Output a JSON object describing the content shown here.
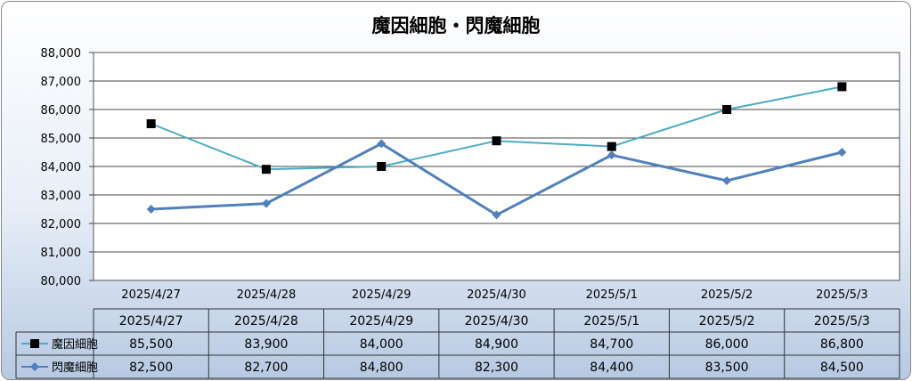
{
  "chart_data": {
    "type": "line",
    "title": "魔因細胞・閃魔細胞",
    "categories": [
      "2025/4/27",
      "2025/4/28",
      "2025/4/29",
      "2025/4/30",
      "2025/5/1",
      "2025/5/2",
      "2025/5/3"
    ],
    "series": [
      {
        "name": "魔因細胞",
        "values": [
          85500,
          83900,
          84000,
          84900,
          84700,
          86000,
          86800
        ],
        "color": "#4bacc6",
        "marker": "square",
        "marker_color": "#000000"
      },
      {
        "name": "閃魔細胞",
        "values": [
          82500,
          82700,
          84800,
          82300,
          84400,
          83500,
          84500
        ],
        "color": "#4f81bd",
        "marker": "diamond",
        "marker_color": "#4f81bd"
      }
    ],
    "ylim": [
      80000,
      88000
    ],
    "y_ticks": [
      "80,000",
      "81,000",
      "82,000",
      "83,000",
      "84,000",
      "85,000",
      "86,000",
      "87,000",
      "88,000"
    ],
    "table": [
      [
        "85,500",
        "83,900",
        "84,000",
        "84,900",
        "84,700",
        "86,000",
        "86,800"
      ],
      [
        "82,500",
        "82,700",
        "84,800",
        "82,300",
        "84,400",
        "83,500",
        "84,500"
      ]
    ],
    "grid": true,
    "legend": "data-table"
  }
}
